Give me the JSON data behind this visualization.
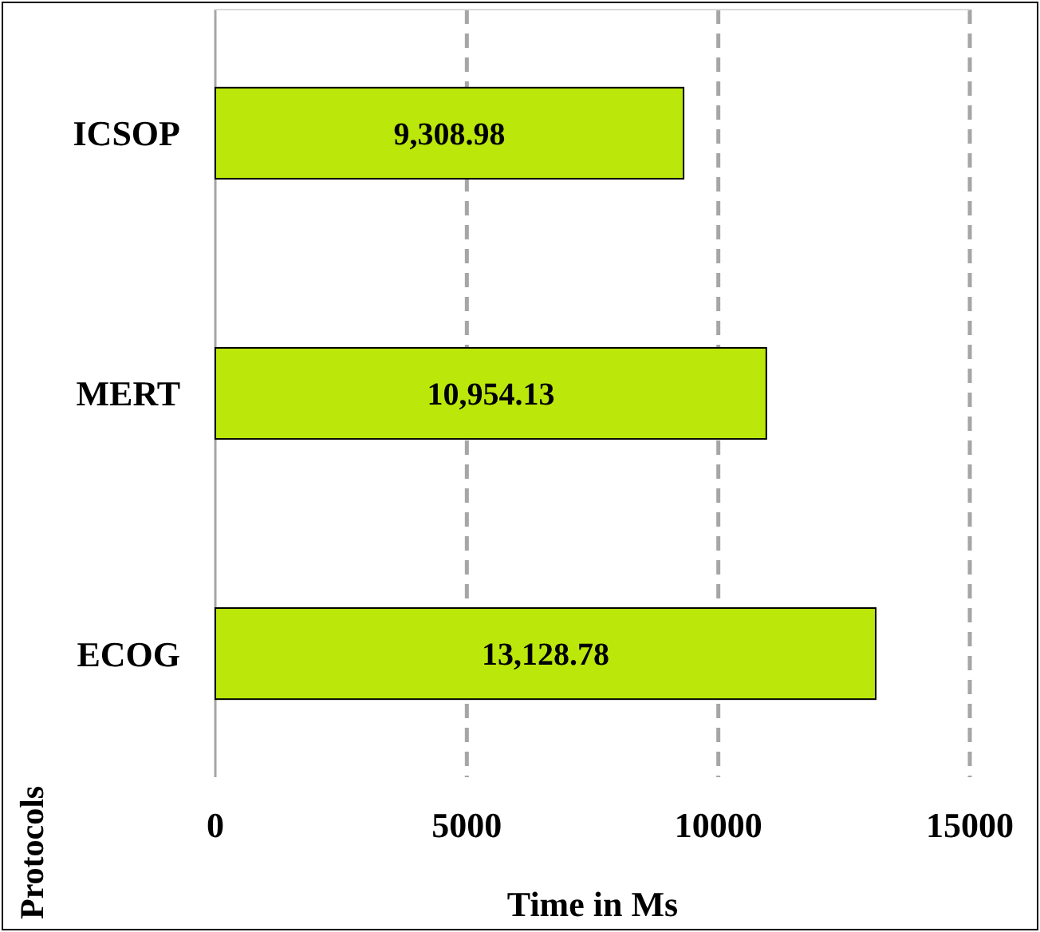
{
  "chart_data": {
    "type": "bar",
    "orientation": "horizontal",
    "xlabel": "Time in Ms",
    "ylabel": "Protocols",
    "categories": [
      "ICSOP",
      "MERT",
      "ECOG"
    ],
    "values": [
      9308.98,
      10954.13,
      13128.78
    ],
    "value_labels": [
      "9,308.98",
      "10,954.13",
      "13,128.78"
    ],
    "color": "#bbe70a",
    "xlim": [
      0,
      15000
    ],
    "xticks": [
      0,
      5000,
      10000,
      15000
    ],
    "grid": "x"
  }
}
